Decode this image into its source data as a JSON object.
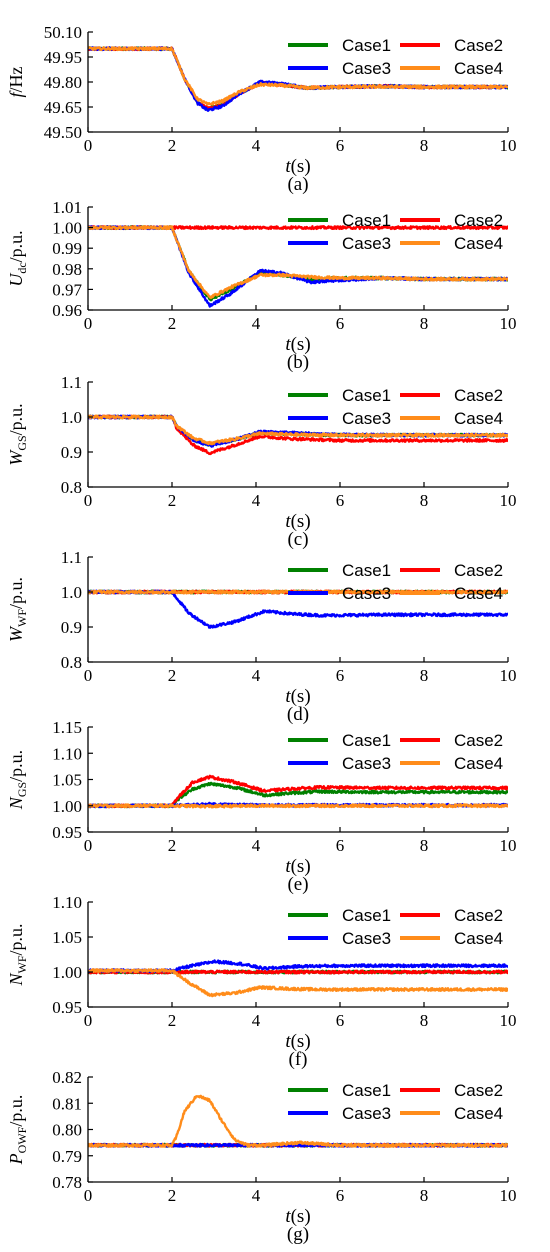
{
  "colors": {
    "Case1": "#008000",
    "Case2": "#ff0000",
    "Case3": "#0000ff",
    "Case4": "#ff8c1a"
  },
  "chart_data": [
    {
      "type": "line",
      "caption": "(a)",
      "ylabel": "f/Hz",
      "xlabel": "t(s)",
      "xlim": [
        0,
        10
      ],
      "xticks": [
        0,
        2,
        4,
        6,
        8,
        10
      ],
      "ylim": [
        49.5,
        50.1
      ],
      "yticks": [
        49.5,
        49.65,
        49.8,
        49.95,
        50.1
      ],
      "ytick_labels": [
        "49.50",
        "49.65",
        "49.80",
        "49.95",
        "50.10"
      ],
      "legend": "top-right",
      "grid": false,
      "series": [
        {
          "name": "Case1",
          "x": [
            0,
            2,
            2.3,
            2.6,
            2.85,
            3.2,
            3.6,
            4.1,
            4.6,
            5.2,
            6,
            7,
            8,
            10
          ],
          "y": [
            50.0,
            50.0,
            49.82,
            49.68,
            49.64,
            49.66,
            49.73,
            49.795,
            49.785,
            49.765,
            49.77,
            49.775,
            49.77,
            49.77
          ]
        },
        {
          "name": "Case2",
          "x": [
            0,
            2,
            2.3,
            2.6,
            2.85,
            3.2,
            3.6,
            4.1,
            4.6,
            5.2,
            6,
            7,
            8,
            10
          ],
          "y": [
            50.0,
            50.0,
            49.82,
            49.68,
            49.64,
            49.66,
            49.73,
            49.795,
            49.785,
            49.765,
            49.77,
            49.775,
            49.77,
            49.77
          ]
        },
        {
          "name": "Case3",
          "x": [
            0,
            2,
            2.3,
            2.6,
            2.85,
            3.2,
            3.6,
            4.1,
            4.6,
            5.2,
            6,
            7,
            8,
            10
          ],
          "y": [
            50.0,
            50.0,
            49.82,
            49.675,
            49.63,
            49.655,
            49.73,
            49.8,
            49.79,
            49.765,
            49.77,
            49.775,
            49.77,
            49.77
          ]
        },
        {
          "name": "Case4",
          "x": [
            0,
            2,
            2.3,
            2.6,
            2.85,
            3.2,
            3.6,
            4.1,
            4.6,
            5.2,
            6,
            7,
            8,
            10
          ],
          "y": [
            50.0,
            50.0,
            49.82,
            49.7,
            49.665,
            49.685,
            49.74,
            49.785,
            49.78,
            49.765,
            49.77,
            49.772,
            49.77,
            49.77
          ]
        }
      ]
    },
    {
      "type": "line",
      "caption": "(b)",
      "ylabel": "Udc/p.u.",
      "ylabel_main": "U",
      "ylabel_sub": "dc",
      "ylabel_unit": "/p.u.",
      "xlabel": "t(s)",
      "xlim": [
        0,
        10
      ],
      "xticks": [
        0,
        2,
        4,
        6,
        8,
        10
      ],
      "ylim": [
        0.96,
        1.01
      ],
      "yticks": [
        0.96,
        0.97,
        0.98,
        0.99,
        1.0,
        1.01
      ],
      "ytick_labels": [
        "0.96",
        "0.97",
        "0.98",
        "0.99",
        "1.00",
        "1.01"
      ],
      "legend": "top-right",
      "grid": false,
      "series": [
        {
          "name": "Case1",
          "x": [
            0,
            2,
            2.4,
            2.9,
            3.4,
            4.1,
            4.6,
            5.3,
            6,
            7,
            8,
            10
          ],
          "y": [
            1.0,
            1.0,
            0.979,
            0.965,
            0.97,
            0.978,
            0.977,
            0.975,
            0.9755,
            0.9755,
            0.975,
            0.975
          ]
        },
        {
          "name": "Case2",
          "x": [
            0,
            10
          ],
          "y": [
            1.0,
            1.0
          ]
        },
        {
          "name": "Case3",
          "x": [
            0,
            2,
            2.4,
            2.9,
            3.4,
            4.1,
            4.6,
            5.3,
            6,
            7,
            8,
            10
          ],
          "y": [
            1.0,
            1.0,
            0.978,
            0.962,
            0.968,
            0.979,
            0.978,
            0.9735,
            0.9745,
            0.9755,
            0.975,
            0.975
          ]
        },
        {
          "name": "Case4",
          "x": [
            0,
            2,
            2.4,
            2.9,
            3.4,
            4.1,
            4.6,
            5.3,
            6,
            7,
            8,
            10
          ],
          "y": [
            1.0,
            1.0,
            0.979,
            0.966,
            0.971,
            0.977,
            0.977,
            0.976,
            0.9755,
            0.9755,
            0.975,
            0.975
          ]
        }
      ]
    },
    {
      "type": "line",
      "caption": "(c)",
      "ylabel": "WGS/p.u.",
      "ylabel_main": "W",
      "ylabel_sub": "GS",
      "ylabel_unit": "/p.u.",
      "xlabel": "t(s)",
      "xlim": [
        0,
        10
      ],
      "xticks": [
        0,
        2,
        4,
        6,
        8,
        10
      ],
      "ylim": [
        0.8,
        1.1
      ],
      "yticks": [
        0.8,
        0.9,
        1.0,
        1.1
      ],
      "ytick_labels": [
        "0.8",
        "0.9",
        "1.0",
        "1.1"
      ],
      "legend": "top-right",
      "grid": false,
      "series": [
        {
          "name": "Case1",
          "x": [
            0,
            2,
            2.1,
            2.5,
            2.9,
            3.5,
            4.1,
            4.8,
            6,
            8,
            10
          ],
          "y": [
            1.0,
            1.0,
            0.975,
            0.935,
            0.92,
            0.935,
            0.955,
            0.952,
            0.948,
            0.948,
            0.948
          ]
        },
        {
          "name": "Case2",
          "x": [
            0,
            2,
            2.1,
            2.5,
            2.9,
            3.5,
            4.1,
            4.8,
            6,
            8,
            10
          ],
          "y": [
            1.0,
            1.0,
            0.97,
            0.92,
            0.897,
            0.92,
            0.945,
            0.938,
            0.933,
            0.933,
            0.933
          ]
        },
        {
          "name": "Case3",
          "x": [
            0,
            2,
            2.1,
            2.5,
            2.9,
            3.5,
            4.1,
            4.8,
            6,
            8,
            10
          ],
          "y": [
            1.0,
            1.0,
            0.975,
            0.935,
            0.918,
            0.935,
            0.958,
            0.955,
            0.949,
            0.948,
            0.948
          ]
        },
        {
          "name": "Case4",
          "x": [
            0,
            2,
            2.1,
            2.5,
            2.9,
            3.5,
            4.1,
            4.8,
            6,
            8,
            10
          ],
          "y": [
            1.0,
            1.0,
            0.976,
            0.94,
            0.925,
            0.937,
            0.953,
            0.95,
            0.948,
            0.948,
            0.948
          ]
        }
      ]
    },
    {
      "type": "line",
      "caption": "(d)",
      "ylabel": "WWF/p.u.",
      "ylabel_main": "W",
      "ylabel_sub": "WF",
      "ylabel_unit": "/p.u.",
      "xlabel": "t(s)",
      "xlim": [
        0,
        10
      ],
      "xticks": [
        0,
        2,
        4,
        6,
        8,
        10
      ],
      "ylim": [
        0.8,
        1.1
      ],
      "yticks": [
        0.8,
        0.9,
        1.0,
        1.1
      ],
      "ytick_labels": [
        "0.8",
        "0.9",
        "1.0",
        "1.1"
      ],
      "legend": "top-right",
      "grid": false,
      "series": [
        {
          "name": "Case1",
          "x": [
            0,
            10
          ],
          "y": [
            1.0,
            1.0
          ]
        },
        {
          "name": "Case2",
          "x": [
            0,
            10
          ],
          "y": [
            1.0,
            1.0
          ]
        },
        {
          "name": "Case3",
          "x": [
            0,
            2,
            2.4,
            2.9,
            3.5,
            4.2,
            4.9,
            5.6,
            7,
            10
          ],
          "y": [
            1.0,
            1.0,
            0.94,
            0.9,
            0.915,
            0.945,
            0.937,
            0.933,
            0.935,
            0.935
          ]
        },
        {
          "name": "Case4",
          "x": [
            0,
            10
          ],
          "y": [
            1.0,
            1.0
          ]
        }
      ]
    },
    {
      "type": "line",
      "caption": "(e)",
      "ylabel": "NGS/p.u.",
      "ylabel_main": "N",
      "ylabel_sub": "GS",
      "ylabel_unit": "/p.u.",
      "xlabel": "t(s)",
      "xlim": [
        0,
        10
      ],
      "xticks": [
        0,
        2,
        4,
        6,
        8,
        10
      ],
      "ylim": [
        0.95,
        1.15
      ],
      "yticks": [
        0.95,
        1.0,
        1.05,
        1.1,
        1.15
      ],
      "ytick_labels": [
        "0.95",
        "1.00",
        "1.05",
        "1.10",
        "1.15"
      ],
      "legend": "top-right",
      "grid": false,
      "series": [
        {
          "name": "Case1",
          "x": [
            0,
            2,
            2.1,
            2.5,
            2.9,
            3.5,
            4.2,
            4.8,
            5.5,
            7,
            10
          ],
          "y": [
            1.0,
            1.0,
            1.01,
            1.032,
            1.042,
            1.035,
            1.02,
            1.024,
            1.027,
            1.026,
            1.026
          ]
        },
        {
          "name": "Case2",
          "x": [
            0,
            2,
            2.1,
            2.5,
            2.9,
            3.5,
            4.2,
            4.8,
            5.5,
            7,
            10
          ],
          "y": [
            1.0,
            1.0,
            1.012,
            1.045,
            1.055,
            1.045,
            1.028,
            1.032,
            1.035,
            1.034,
            1.034
          ]
        },
        {
          "name": "Case3",
          "x": [
            0,
            2,
            2.9,
            4,
            10
          ],
          "y": [
            1.0,
            1.0,
            1.003,
            1.001,
            1.001
          ]
        },
        {
          "name": "Case4",
          "x": [
            0,
            2,
            2.9,
            4,
            10
          ],
          "y": [
            1.0,
            1.0,
            0.999,
            1.0,
            1.0
          ]
        }
      ]
    },
    {
      "type": "line",
      "caption": "(f)",
      "ylabel": "NWF/p.u.",
      "ylabel_main": "N",
      "ylabel_sub": "WF",
      "ylabel_unit": "/p.u.",
      "xlabel": "t(s)",
      "xlim": [
        0,
        10
      ],
      "xticks": [
        0,
        2,
        4,
        6,
        8,
        10
      ],
      "ylim": [
        0.95,
        1.1
      ],
      "yticks": [
        0.95,
        1.0,
        1.05,
        1.1
      ],
      "ytick_labels": [
        "0.95",
        "1.00",
        "1.05",
        "1.10"
      ],
      "legend": "top-right",
      "grid": false,
      "series": [
        {
          "name": "Case1",
          "x": [
            0,
            10
          ],
          "y": [
            1.0,
            1.0
          ]
        },
        {
          "name": "Case2",
          "x": [
            0,
            10
          ],
          "y": [
            1.0,
            1.0
          ]
        },
        {
          "name": "Case3",
          "x": [
            0,
            2,
            2.4,
            3,
            3.6,
            4.2,
            5,
            6,
            8,
            10
          ],
          "y": [
            1.002,
            1.002,
            1.008,
            1.015,
            1.012,
            1.005,
            1.008,
            1.009,
            1.009,
            1.009
          ]
        },
        {
          "name": "Case4",
          "x": [
            0,
            2,
            2.4,
            2.9,
            3.5,
            4.1,
            4.8,
            5.5,
            7,
            10
          ],
          "y": [
            1.002,
            1.002,
            0.985,
            0.967,
            0.97,
            0.978,
            0.976,
            0.975,
            0.975,
            0.975
          ]
        }
      ]
    },
    {
      "type": "line",
      "caption": "(g)",
      "ylabel": "POWF/p.u.",
      "ylabel_main": "P",
      "ylabel_sub": "OWF",
      "ylabel_unit": "/p.u.",
      "xlabel": "t(s)",
      "xlim": [
        0,
        10
      ],
      "xticks": [
        0,
        2,
        4,
        6,
        8,
        10
      ],
      "ylim": [
        0.78,
        0.82
      ],
      "yticks": [
        0.78,
        0.79,
        0.8,
        0.81,
        0.82
      ],
      "ytick_labels": [
        "0.78",
        "0.79",
        "0.80",
        "0.81",
        "0.82"
      ],
      "legend": "top-right",
      "grid": false,
      "series": [
        {
          "name": "Case1",
          "x": [
            0,
            10
          ],
          "y": [
            0.794,
            0.794
          ]
        },
        {
          "name": "Case2",
          "x": [
            0,
            10
          ],
          "y": [
            0.794,
            0.794
          ]
        },
        {
          "name": "Case3",
          "x": [
            0,
            10
          ],
          "y": [
            0.794,
            0.794
          ]
        },
        {
          "name": "Case4",
          "x": [
            0,
            2,
            2.1,
            2.3,
            2.6,
            2.9,
            3.2,
            3.5,
            3.8,
            4.2,
            5,
            6,
            10
          ],
          "y": [
            0.794,
            0.794,
            0.797,
            0.807,
            0.813,
            0.811,
            0.803,
            0.796,
            0.794,
            0.794,
            0.795,
            0.794,
            0.794
          ]
        }
      ]
    }
  ]
}
